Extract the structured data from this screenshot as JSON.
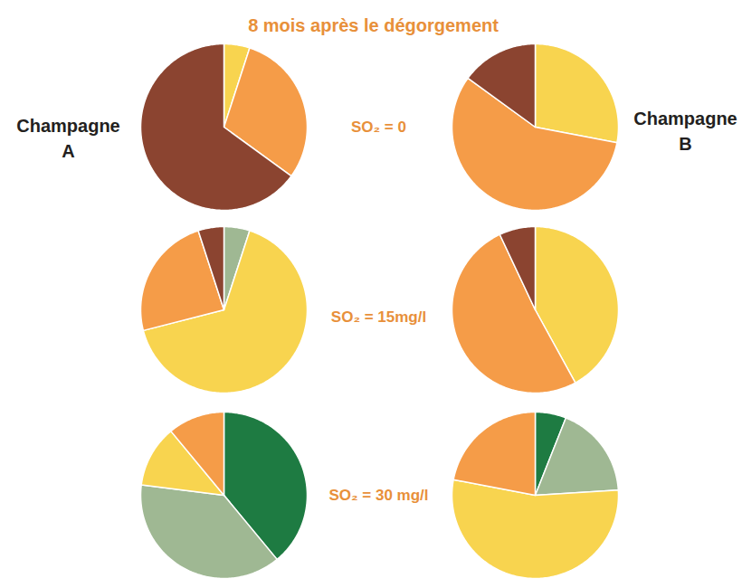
{
  "title": "8 mois après le dégorgement",
  "column_labels": [
    "Champagne A",
    "Champagne B"
  ],
  "row_labels": [
    "SO₂ = 0",
    "SO₂ = 15mg/l",
    "SO₂ = 30 mg/l"
  ],
  "chart_data": [
    {
      "type": "pie",
      "values": [
        5,
        30,
        65
      ],
      "colors": [
        "#f8d44f",
        "#f59c48",
        "#8b4430"
      ]
    },
    {
      "type": "pie",
      "values": [
        28,
        57,
        15
      ],
      "colors": [
        "#f8d44f",
        "#f59c48",
        "#8b4430"
      ]
    },
    {
      "type": "pie",
      "values": [
        5,
        66,
        24,
        5
      ],
      "colors": [
        "#9fb893",
        "#f8d44f",
        "#f59c48",
        "#8b4430"
      ]
    },
    {
      "type": "pie",
      "values": [
        42,
        51,
        7
      ],
      "colors": [
        "#f8d44f",
        "#f59c48",
        "#8b4430"
      ]
    },
    {
      "type": "pie",
      "values": [
        39,
        38,
        12,
        11
      ],
      "colors": [
        "#1e7b42",
        "#9fb893",
        "#f8d44f",
        "#f59c48"
      ]
    },
    {
      "type": "pie",
      "values": [
        6,
        18,
        54,
        22
      ],
      "colors": [
        "#1e7b42",
        "#9fb893",
        "#f8d44f",
        "#f59c48"
      ]
    }
  ]
}
